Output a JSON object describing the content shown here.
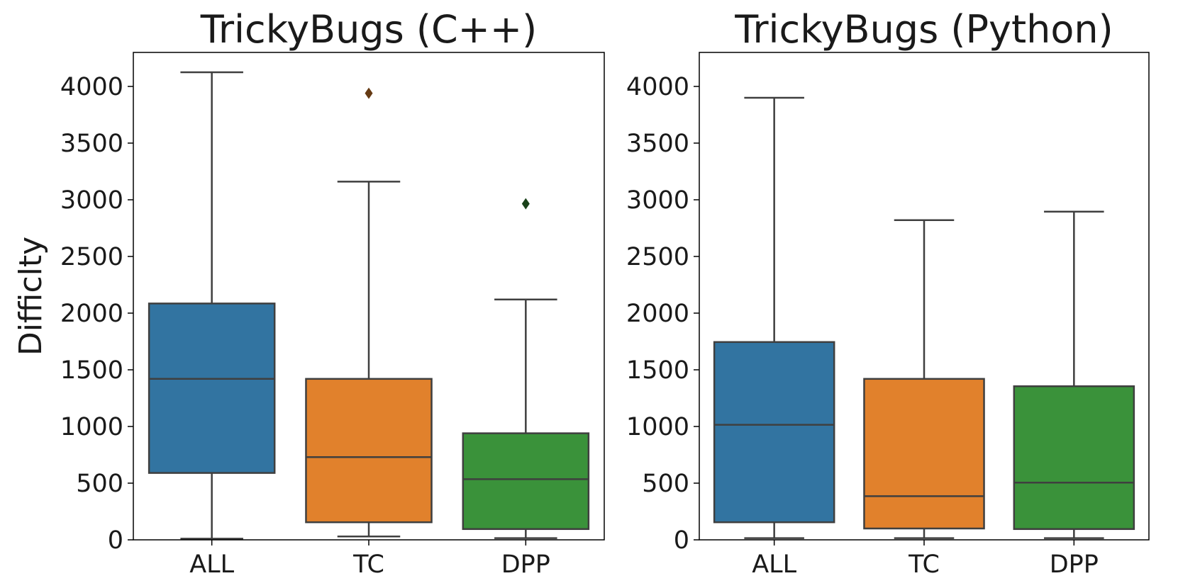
{
  "chart_data": [
    {
      "type": "box",
      "title": "TrickyBugs (C++)",
      "ylabel": "Difficlty",
      "xlabel": "",
      "ylim": [
        0,
        4300
      ],
      "yticks": [
        0,
        500,
        1000,
        1500,
        2000,
        2500,
        3000,
        3500,
        4000
      ],
      "grid": false,
      "categories": [
        "ALL",
        "TC",
        "DPP"
      ],
      "colors": [
        "#3274a1",
        "#e1812c",
        "#3a923a"
      ],
      "boxes": [
        {
          "label": "ALL",
          "whisker_low": 10,
          "q1": 590,
          "median": 1420,
          "q3": 2085,
          "whisker_high": 4125,
          "outliers": []
        },
        {
          "label": "TC",
          "whisker_low": 30,
          "q1": 155,
          "median": 730,
          "q3": 1420,
          "whisker_high": 3160,
          "outliers": [
            3940
          ]
        },
        {
          "label": "DPP",
          "whisker_low": 15,
          "q1": 95,
          "median": 535,
          "q3": 940,
          "whisker_high": 2120,
          "outliers": [
            2965
          ]
        }
      ]
    },
    {
      "type": "box",
      "title": "TrickyBugs (Python)",
      "ylabel": "",
      "xlabel": "",
      "ylim": [
        0,
        4300
      ],
      "yticks": [
        0,
        500,
        1000,
        1500,
        2000,
        2500,
        3000,
        3500,
        4000
      ],
      "grid": false,
      "categories": [
        "ALL",
        "TC",
        "DPP"
      ],
      "colors": [
        "#3274a1",
        "#e1812c",
        "#3a923a"
      ],
      "boxes": [
        {
          "label": "ALL",
          "whisker_low": 15,
          "q1": 155,
          "median": 1015,
          "q3": 1745,
          "whisker_high": 3900,
          "outliers": []
        },
        {
          "label": "TC",
          "whisker_low": 15,
          "q1": 100,
          "median": 385,
          "q3": 1420,
          "whisker_high": 2820,
          "outliers": []
        },
        {
          "label": "DPP",
          "whisker_low": 15,
          "q1": 95,
          "median": 505,
          "q3": 1355,
          "whisker_high": 2895,
          "outliers": []
        }
      ]
    }
  ]
}
